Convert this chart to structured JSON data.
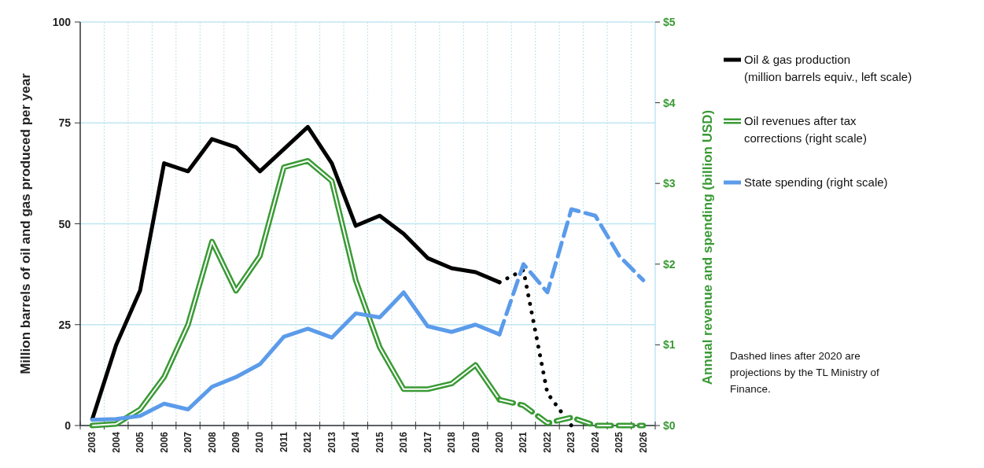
{
  "chart_data": {
    "type": "line",
    "ylabel": "Million barrels of oil and gas produced per year",
    "y2label": "Annual revenue and spending (billion USD)",
    "categories": [
      "2003",
      "2004",
      "2005",
      "2006",
      "2007",
      "2008",
      "2009",
      "2010",
      "2011",
      "2012",
      "2013",
      "2014",
      "2015",
      "2016",
      "2017",
      "2018",
      "2019",
      "2020",
      "2021",
      "2022",
      "2023",
      "2024",
      "2025",
      "2026"
    ],
    "ylim": [
      0,
      100
    ],
    "yticks": [
      0,
      25,
      50,
      75,
      100
    ],
    "y2lim": [
      0,
      5
    ],
    "y2ticks": [
      {
        "value": 0,
        "label": "$0"
      },
      {
        "value": 1,
        "label": "$1"
      },
      {
        "value": 2,
        "label": "$2"
      },
      {
        "value": 3,
        "label": "$3"
      },
      {
        "value": 4,
        "label": "$4"
      },
      {
        "value": 5,
        "label": "$5"
      }
    ],
    "grid": true,
    "legend": "right",
    "line_style": "solid",
    "series": [
      {
        "name": "Oil & gas production\n(million barrels equiv., left scale)",
        "color": "#000000",
        "values": [
          1.5,
          20,
          33.5,
          65,
          63,
          71,
          69,
          63,
          68.5,
          74,
          65,
          49.5,
          52,
          47.5,
          41.5,
          39,
          38,
          35.5,
          null,
          null,
          null,
          null,
          null,
          null
        ]
      },
      {
        "color": "#000000",
        "line_style": "dotted",
        "values": [
          null,
          null,
          null,
          null,
          null,
          null,
          null,
          null,
          null,
          null,
          null,
          null,
          null,
          null,
          null,
          null,
          null,
          35.5,
          38.5,
          8,
          0,
          null,
          null,
          null
        ]
      },
      {
        "name": "Oil revenues after tax\ncorrections (right scale)",
        "color": "#3a9a35",
        "axis": "y2",
        "values": [
          0,
          0.02,
          0.2,
          0.6,
          1.25,
          2.28,
          1.67,
          2.1,
          3.2,
          3.28,
          3.03,
          1.8,
          0.97,
          0.45,
          0.45,
          0.52,
          0.75,
          0.32,
          null,
          null,
          null,
          null,
          null,
          null
        ]
      },
      {
        "color": "#3a9a35",
        "axis": "y2",
        "line_style": "dashed",
        "values": [
          null,
          null,
          null,
          null,
          null,
          null,
          null,
          null,
          null,
          null,
          null,
          null,
          null,
          null,
          null,
          null,
          null,
          0.32,
          0.25,
          0.03,
          0.1,
          0,
          0,
          0
        ]
      },
      {
        "name": "State spending (right scale)",
        "color": "#5b9bea",
        "axis": "y2",
        "values": [
          0.07,
          0.08,
          0.12,
          0.27,
          0.2,
          0.48,
          0.6,
          0.76,
          1.1,
          1.2,
          1.09,
          1.39,
          1.34,
          1.65,
          1.23,
          1.16,
          1.25,
          1.13,
          null,
          null,
          null,
          null,
          null,
          null
        ]
      },
      {
        "color": "#5b9bea",
        "axis": "y2",
        "line_style": "dashed",
        "values": [
          null,
          null,
          null,
          null,
          null,
          null,
          null,
          null,
          null,
          null,
          null,
          null,
          null,
          null,
          null,
          null,
          null,
          1.13,
          2.0,
          1.65,
          2.68,
          2.6,
          2.1,
          1.8
        ]
      }
    ],
    "annotations": [
      "Dashed lines after 2020 are\nprojections by the TL Ministry of\nFinance."
    ]
  }
}
